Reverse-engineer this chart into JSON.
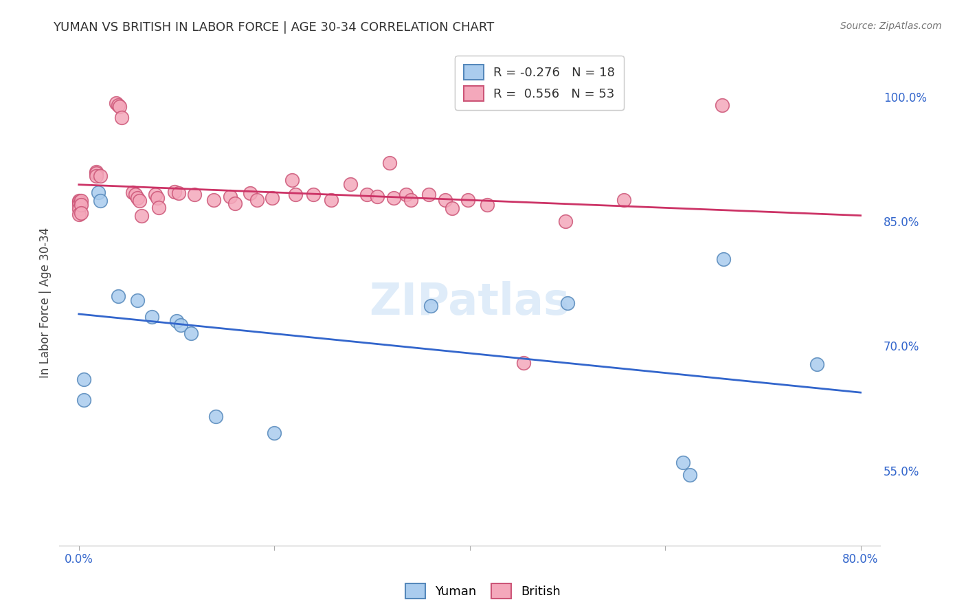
{
  "title": "YUMAN VS BRITISH IN LABOR FORCE | AGE 30-34 CORRELATION CHART",
  "source": "Source: ZipAtlas.com",
  "ylabel": "In Labor Force | Age 30-34",
  "ytick_labels": [
    "55.0%",
    "70.0%",
    "85.0%",
    "100.0%"
  ],
  "ytick_values": [
    0.55,
    0.7,
    0.85,
    1.0
  ],
  "xtick_labels": [
    "0.0%",
    "",
    "",
    "",
    "80.0%"
  ],
  "xtick_positions": [
    0.0,
    0.2,
    0.4,
    0.6,
    0.8
  ],
  "xlim": [
    -0.02,
    0.82
  ],
  "ylim": [
    0.46,
    1.045
  ],
  "background_color": "#ffffff",
  "grid_color": "#cccccc",
  "watermark": "ZIPatlas",
  "yuman_color": "#aaccee",
  "british_color": "#f4a8bb",
  "yuman_edge_color": "#5588bb",
  "british_edge_color": "#cc5577",
  "yuman_R": -0.276,
  "yuman_N": 18,
  "british_R": 0.556,
  "british_N": 53,
  "yuman_line_color": "#3366cc",
  "british_line_color": "#cc3366",
  "yuman_x": [
    0.005,
    0.005,
    0.02,
    0.022,
    0.04,
    0.06,
    0.075,
    0.1,
    0.104,
    0.115,
    0.14,
    0.2,
    0.36,
    0.5,
    0.618,
    0.625,
    0.66,
    0.755
  ],
  "yuman_y": [
    0.66,
    0.635,
    0.885,
    0.875,
    0.76,
    0.755,
    0.735,
    0.73,
    0.725,
    0.715,
    0.615,
    0.595,
    0.748,
    0.752,
    0.56,
    0.545,
    0.805,
    0.678
  ],
  "british_x": [
    0.0,
    0.0,
    0.0,
    0.0,
    0.0,
    0.002,
    0.002,
    0.002,
    0.018,
    0.018,
    0.018,
    0.022,
    0.038,
    0.04,
    0.042,
    0.044,
    0.055,
    0.058,
    0.06,
    0.062,
    0.064,
    0.078,
    0.08,
    0.082,
    0.098,
    0.102,
    0.118,
    0.138,
    0.155,
    0.16,
    0.175,
    0.182,
    0.198,
    0.218,
    0.222,
    0.24,
    0.258,
    0.278,
    0.295,
    0.305,
    0.318,
    0.322,
    0.335,
    0.34,
    0.358,
    0.375,
    0.382,
    0.398,
    0.418,
    0.455,
    0.498,
    0.558,
    0.658
  ],
  "british_y": [
    0.875,
    0.873,
    0.87,
    0.865,
    0.858,
    0.875,
    0.87,
    0.86,
    0.91,
    0.908,
    0.905,
    0.905,
    0.992,
    0.99,
    0.988,
    0.975,
    0.885,
    0.882,
    0.878,
    0.875,
    0.857,
    0.882,
    0.878,
    0.867,
    0.886,
    0.884,
    0.882,
    0.876,
    0.88,
    0.872,
    0.884,
    0.876,
    0.878,
    0.9,
    0.882,
    0.882,
    0.876,
    0.895,
    0.882,
    0.88,
    0.92,
    0.878,
    0.882,
    0.876,
    0.882,
    0.876,
    0.866,
    0.876,
    0.87,
    0.68,
    0.85,
    0.876,
    0.99
  ]
}
